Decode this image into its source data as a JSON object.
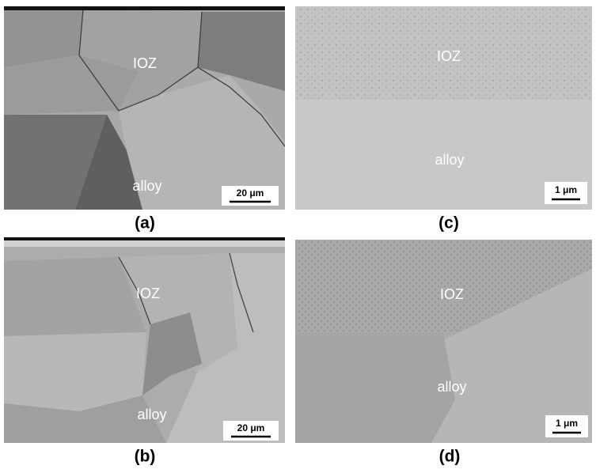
{
  "panels": [
    {
      "caption": "(a)",
      "top_label": "IOZ",
      "bottom_label": "alloy",
      "scale_bar": "20 μm"
    },
    {
      "caption": "(c)",
      "top_label": "IOZ",
      "bottom_label": "alloy",
      "scale_bar": "1 μm"
    },
    {
      "caption": "(b)",
      "top_label": "IOZ",
      "bottom_label": "alloy",
      "scale_bar": "20 μm"
    },
    {
      "caption": "(d)",
      "top_label": "IOZ",
      "bottom_label": "alloy",
      "scale_bar": "1 μm"
    }
  ]
}
